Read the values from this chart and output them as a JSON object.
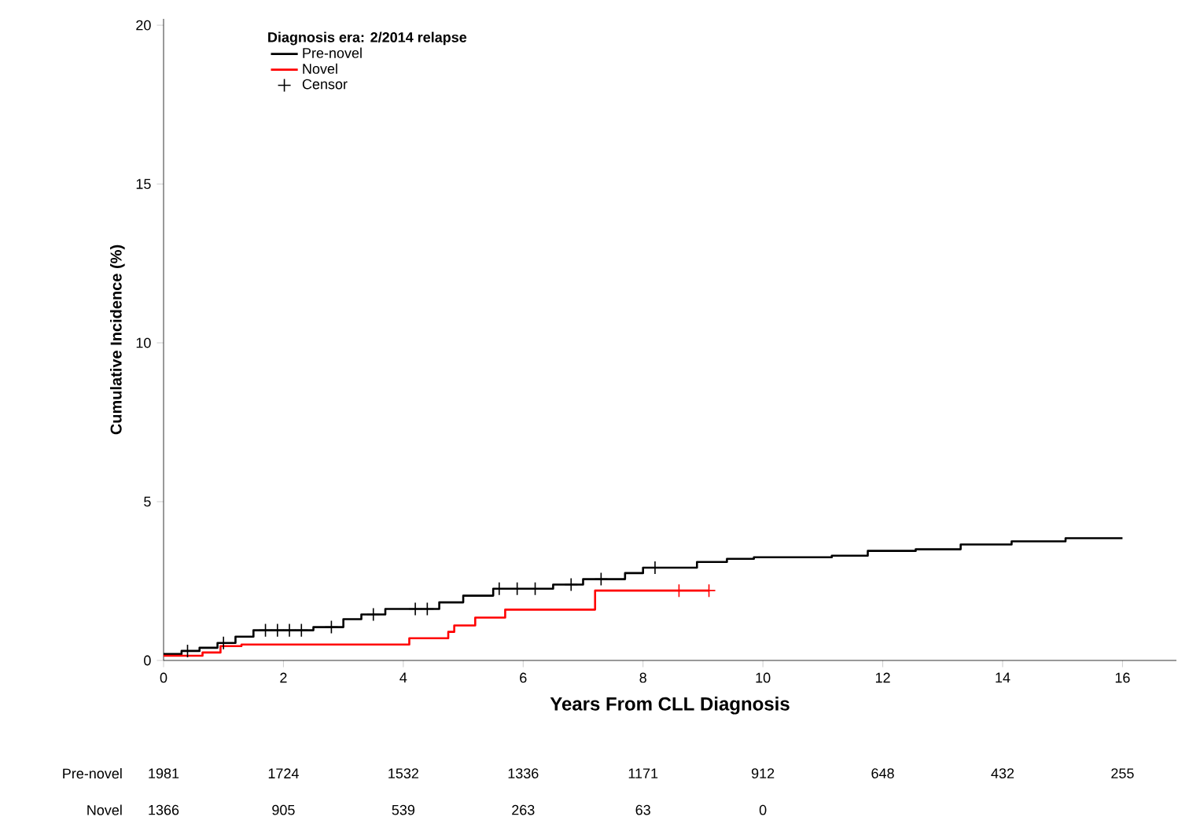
{
  "chart_data": {
    "type": "step",
    "xlabel": "Years From CLL Diagnosis",
    "ylabel": "Cumulative Incidence (%)",
    "legend_title": "Diagnosis era: 2/2014 relapse",
    "legend": "top left",
    "xlim": [
      0,
      16.9
    ],
    "ylim": [
      0,
      20.2
    ],
    "xticks": [
      0,
      2,
      4,
      6,
      8,
      10,
      12,
      14,
      16
    ],
    "yticks": [
      0,
      5,
      10,
      15,
      20
    ],
    "grid": false,
    "series": [
      {
        "name": "Pre-novel",
        "color": "#000000",
        "x": [
          0,
          0.3,
          0.6,
          0.9,
          1.2,
          1.5,
          2.5,
          3.0,
          3.3,
          3.7,
          4.6,
          5.0,
          5.5,
          6.5,
          7.0,
          7.7,
          8.0,
          8.9,
          9.4,
          9.85,
          11.15,
          11.75,
          12.55,
          13.3,
          14.15,
          15.05,
          16
        ],
        "values": [
          0.2,
          0.3,
          0.4,
          0.55,
          0.75,
          0.95,
          1.05,
          1.3,
          1.45,
          1.62,
          1.83,
          2.04,
          2.26,
          2.39,
          2.56,
          2.75,
          2.92,
          3.1,
          3.2,
          3.25,
          3.3,
          3.45,
          3.5,
          3.65,
          3.75,
          3.85,
          3.85
        ]
      },
      {
        "name": "Novel",
        "color": "#ff0000",
        "x": [
          0,
          0.65,
          0.95,
          1.3,
          4.1,
          4.75,
          4.85,
          5.2,
          5.7,
          7.2,
          9.1
        ],
        "values": [
          0.15,
          0.25,
          0.45,
          0.5,
          0.7,
          0.9,
          1.1,
          1.35,
          1.6,
          2.2,
          2.2
        ]
      },
      {
        "name": "Censor",
        "color": "#000000",
        "type": "scatter",
        "marker": "cross",
        "x": [
          0.4,
          1.0,
          1.7,
          1.9,
          2.1,
          2.3,
          2.8,
          3.5,
          4.2,
          4.4,
          5.6,
          5.9,
          6.2,
          6.8,
          7.3,
          8.2
        ],
        "values": [
          0.3,
          0.55,
          0.95,
          0.95,
          0.95,
          0.95,
          1.05,
          1.45,
          1.62,
          1.62,
          2.26,
          2.26,
          2.26,
          2.39,
          2.56,
          2.92
        ]
      },
      {
        "color": "#ff0000",
        "type": "scatter",
        "marker": "cross",
        "x": [
          8.6,
          9.1
        ],
        "values": [
          2.2,
          2.2
        ]
      }
    ],
    "annotations": [
      "Pre-novel",
      "1981",
      "1724",
      "1532",
      "1336",
      "1171",
      "912",
      "648",
      "432",
      "255",
      "Novel",
      "1366",
      "905",
      "539",
      "263",
      "63",
      "0"
    ]
  }
}
